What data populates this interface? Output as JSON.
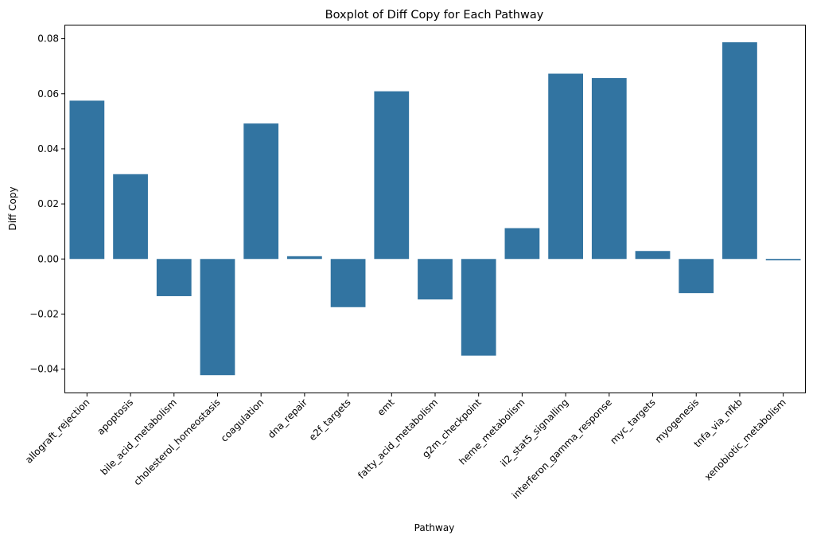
{
  "chart_data": {
    "type": "bar",
    "title": "Boxplot of Diff Copy for Each Pathway",
    "xlabel": "Pathway",
    "ylabel": "Diff Copy",
    "categories": [
      "allograft_rejection",
      "apoptosis",
      "bile_acid_metabolism",
      "cholesterol_homeostasis",
      "coagulation",
      "dna_repair",
      "e2f_targets",
      "emt",
      "fatty_acid_metabolism",
      "g2m_checkpoint",
      "heme_metabolism",
      "il2_stat5_signalling",
      "interferon_gamma_response",
      "myc_targets",
      "myogenesis",
      "tnfa_via_nfkb",
      "xenobiotic_metabolism"
    ],
    "values": [
      0.0575,
      0.0308,
      -0.0135,
      -0.0422,
      0.0492,
      0.001,
      -0.0175,
      0.0609,
      -0.0147,
      -0.0351,
      0.0112,
      0.0673,
      0.0657,
      0.0029,
      -0.0124,
      0.0787,
      -0.0005
    ],
    "ylim": [
      -0.0485,
      0.0848
    ],
    "yticks": [
      -0.04,
      -0.02,
      0.0,
      0.02,
      0.04,
      0.06,
      0.08
    ],
    "ytick_labels": [
      "−0.04",
      "−0.02",
      "0.00",
      "0.02",
      "0.04",
      "0.06",
      "0.08"
    ],
    "bar_color": "#3274a1",
    "grid": false,
    "legend": "none"
  }
}
